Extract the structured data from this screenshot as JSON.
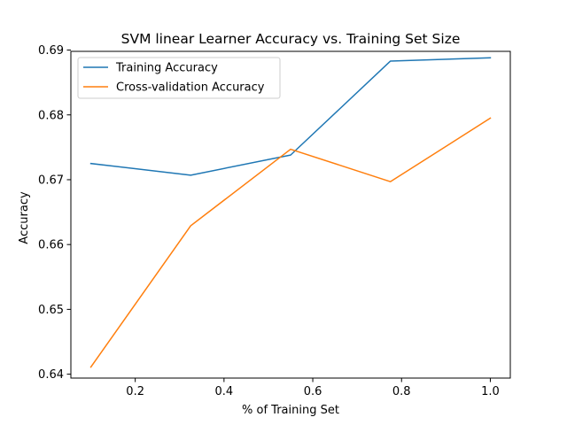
{
  "chart_data": {
    "type": "line",
    "title": "SVM linear Learner Accuracy vs. Training Set Size",
    "xlabel": "% of Training Set",
    "ylabel": "Accuracy",
    "xlim": [
      0.055,
      1.045
    ],
    "ylim": [
      0.6394,
      0.6898
    ],
    "x_ticks": [
      0.2,
      0.4,
      0.6,
      0.8,
      1.0
    ],
    "x_tick_labels": [
      "0.2",
      "0.4",
      "0.6",
      "0.8",
      "1.0"
    ],
    "y_ticks": [
      0.64,
      0.65,
      0.66,
      0.67,
      0.68,
      0.69
    ],
    "y_tick_labels": [
      "0.64",
      "0.65",
      "0.66",
      "0.67",
      "0.68",
      "0.69"
    ],
    "grid": false,
    "legend_position": "top-left",
    "x": [
      0.1,
      0.325,
      0.55,
      0.775,
      1.0
    ],
    "series": [
      {
        "name": "Training Accuracy",
        "color": "#1f77b4",
        "values": [
          0.6725,
          0.6707,
          0.6738,
          0.6883,
          0.6888
        ]
      },
      {
        "name": "Cross-validation Accuracy",
        "color": "#ff7f0e",
        "values": [
          0.6411,
          0.6629,
          0.6747,
          0.6697,
          0.6795
        ]
      }
    ]
  }
}
